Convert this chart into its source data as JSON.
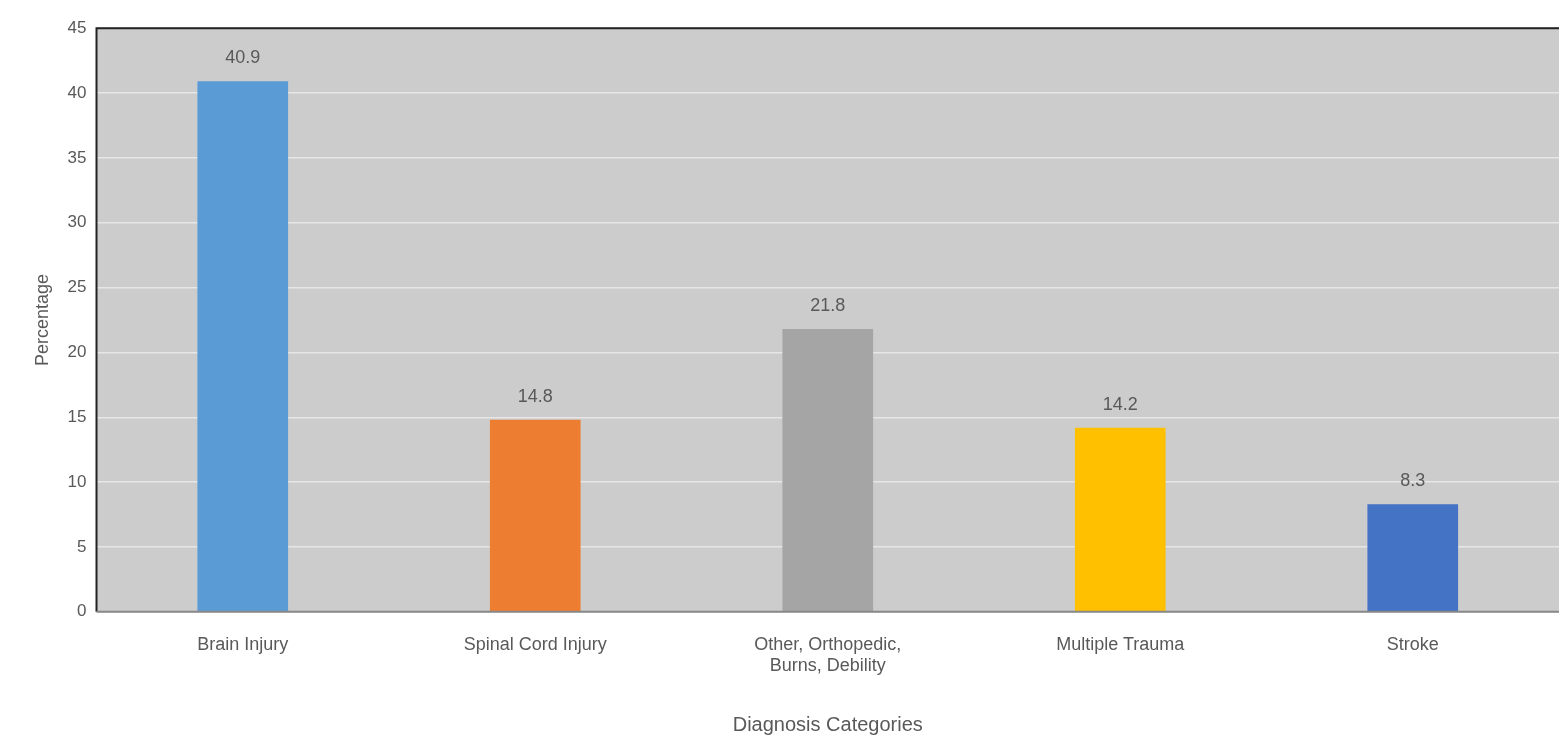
{
  "chart_data": {
    "type": "bar",
    "xlabel": "Diagnosis Categories",
    "ylabel": "Percentage",
    "categories": [
      "Brain Injury",
      "Spinal Cord Injury",
      "Other, Orthopedic, Burns, Debility",
      "Multiple Trauma",
      "Stroke"
    ],
    "values": [
      40.9,
      14.8,
      21.8,
      14.2,
      8.3
    ],
    "colors": [
      "#5b9bd5",
      "#ed7d31",
      "#a5a5a5",
      "#ffc000",
      "#4472c4"
    ],
    "ylim": [
      0,
      45
    ],
    "yticks": [
      0,
      5,
      10,
      15,
      20,
      25,
      30,
      35,
      40,
      45
    ],
    "grid": "y",
    "data_labels": true,
    "legend": false
  }
}
